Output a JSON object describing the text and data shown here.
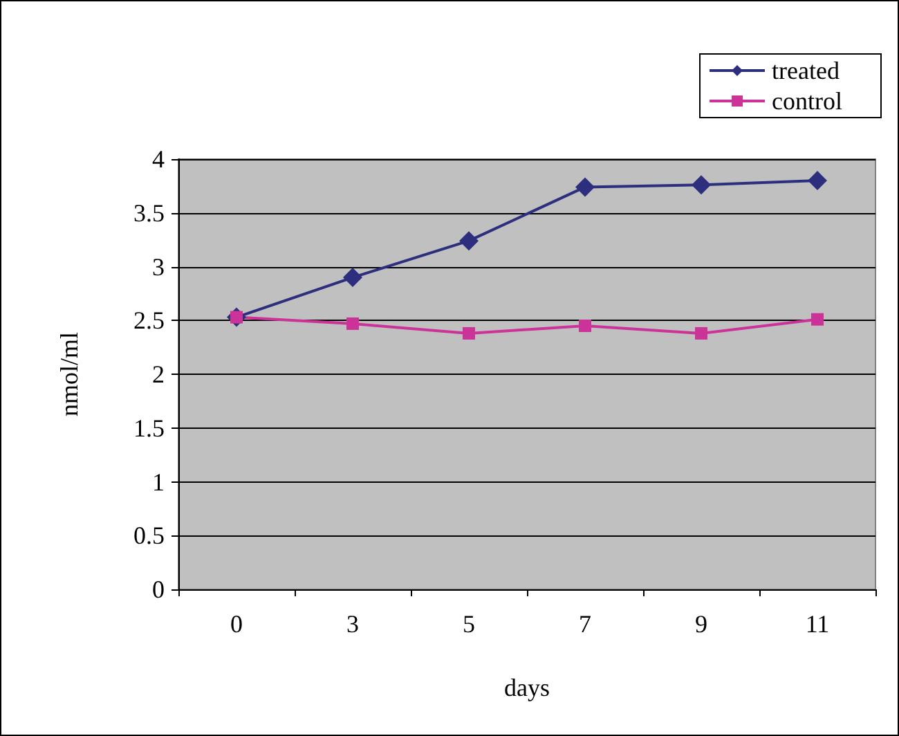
{
  "chart_data": {
    "type": "line",
    "xlabel": "days",
    "ylabel": "nmol/ml",
    "categories": [
      "0",
      "3",
      "5",
      "7",
      "9",
      "11"
    ],
    "series": [
      {
        "name": "treated",
        "color": "#2e2e7e",
        "marker": "diamond",
        "values": [
          2.53,
          2.9,
          3.24,
          3.74,
          3.76,
          3.8
        ]
      },
      {
        "name": "control",
        "color": "#cc3399",
        "marker": "square",
        "values": [
          2.53,
          2.47,
          2.38,
          2.45,
          2.38,
          2.51
        ]
      }
    ],
    "ylim": [
      0,
      4
    ],
    "yticks": [
      0,
      0.5,
      1,
      1.5,
      2,
      2.5,
      3,
      3.5,
      4
    ],
    "grid": "y",
    "legend": "top right",
    "line_style": "solid"
  }
}
